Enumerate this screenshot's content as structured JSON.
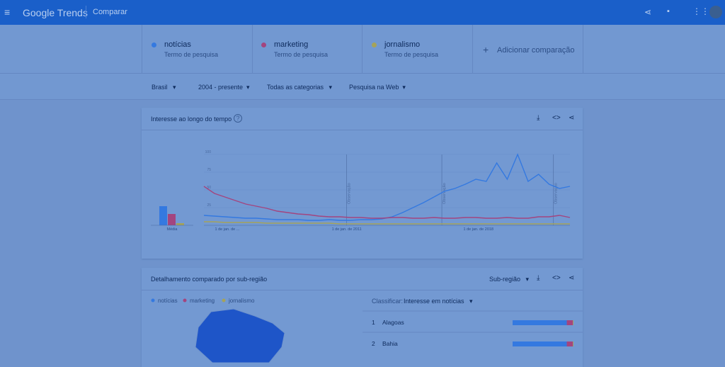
{
  "header": {
    "app": "Google Trends",
    "section": "Comparar"
  },
  "terms": [
    {
      "name": "notícias",
      "subtitle": "Termo de pesquisa",
      "color": "#3479e0"
    },
    {
      "name": "marketing",
      "subtitle": "Termo de pesquisa",
      "color": "#a3457f"
    },
    {
      "name": "jornalismo",
      "subtitle": "Termo de pesquisa",
      "color": "#a5a35a"
    }
  ],
  "add_comparison": "Adicionar comparação",
  "filters": [
    "Brasil",
    "2004 - presente",
    "Todas as categorias",
    "Pesquisa na Web"
  ],
  "interest_card": {
    "title": "Interesse ao longo do tempo",
    "chart_data": {
      "type": "line",
      "ylim": [
        0,
        100
      ],
      "yticks": [
        25,
        50,
        75,
        100
      ],
      "x_labels": [
        "1 de jan. de ...",
        "1 de jan. de 2011",
        "1 de jan. de 2018"
      ],
      "annotations": [
        "Observação",
        "Observação",
        "Observação"
      ],
      "average_label": "Média",
      "averages": [
        27,
        16,
        3
      ],
      "series": [
        {
          "name": "notícias",
          "values": [
            14,
            13,
            12,
            11,
            10,
            10,
            9,
            8,
            8,
            8,
            7,
            7,
            8,
            7,
            7,
            8,
            8,
            9,
            12,
            18,
            25,
            32,
            40,
            48,
            52,
            58,
            65,
            62,
            88,
            65,
            100,
            62,
            72,
            58,
            52,
            55
          ]
        },
        {
          "name": "marketing",
          "values": [
            55,
            45,
            40,
            35,
            30,
            27,
            24,
            20,
            18,
            16,
            15,
            13,
            12,
            12,
            11,
            11,
            10,
            10,
            11,
            11,
            10,
            10,
            11,
            10,
            10,
            11,
            11,
            10,
            10,
            11,
            10,
            10,
            12,
            12,
            14,
            11
          ]
        },
        {
          "name": "jornalismo",
          "values": [
            5,
            5,
            4,
            4,
            4,
            4,
            3,
            3,
            3,
            3,
            3,
            3,
            3,
            2,
            2,
            2,
            2,
            2,
            2,
            2,
            2,
            2,
            2,
            2,
            2,
            2,
            2,
            2,
            2,
            2,
            2,
            2,
            2,
            2,
            2,
            2
          ]
        }
      ]
    }
  },
  "region_card": {
    "title": "Detalhamento comparado por sub-região",
    "resolution": "Sub-região",
    "sort_label": "Classificar:",
    "sort_value": "Interesse em notícias",
    "rows": [
      {
        "rank": "1",
        "name": "Alagoas",
        "values": [
          89,
          10,
          1
        ]
      },
      {
        "rank": "2",
        "name": "Bahia",
        "values": [
          89,
          10,
          1
        ]
      }
    ]
  }
}
